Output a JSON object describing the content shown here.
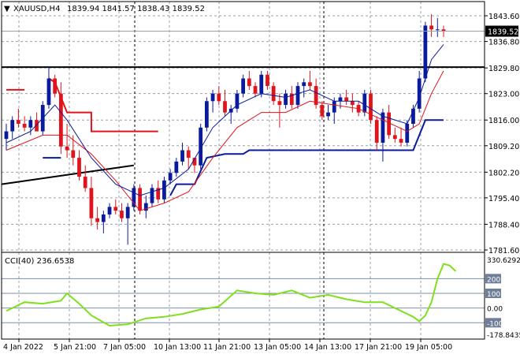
{
  "header": {
    "arrow": "▼",
    "symbol_tf": "XAUUSD,H4",
    "ohlc": "1839.94 1841.57 1838.43 1839.52"
  },
  "indicator": {
    "label": "CCI(40) 236.6538"
  },
  "colors": {
    "bull_candle": "#0a1a9c",
    "bear_candle": "#e0141c",
    "fast_ma": "#0a1a9c",
    "slow_ma": "#e0141c",
    "cci_line": "#7fe01e",
    "grid": "#9aa0a8",
    "frame": "#000000",
    "price_tag": "#000000"
  },
  "chart_data": {
    "type": "candlestick",
    "price_ticks": [
      "1843.60",
      "1836.80",
      "1829.80",
      "1823.00",
      "1816.00",
      "1809.20",
      "1802.20",
      "1795.40",
      "1788.40",
      "1781.60"
    ],
    "price_min": 1781.6,
    "price_max": 1843.6,
    "current_price": "1839.52",
    "x_labels": [
      "4 Jan 2022",
      "5 Jan 21:00",
      "7 Jan 05:00",
      "10 Jan 13:00",
      "11 Jan 21:00",
      "13 Jan 05:00",
      "14 Jan 13:00",
      "17 Jan 21:00",
      "19 Jan 05:00"
    ],
    "cci_ticks": [
      "330.6292",
      "200",
      "100",
      "0.00",
      "-100",
      "-178.8435"
    ],
    "cci_levels": [
      200,
      100,
      0,
      -100
    ],
    "cci_min": -178.8435,
    "cci_max": 330.6292,
    "candles": [
      [
        1811,
        1815,
        1808,
        1813
      ],
      [
        1813,
        1817,
        1811,
        1816
      ],
      [
        1816,
        1819,
        1814,
        1815
      ],
      [
        1815,
        1817,
        1813,
        1814
      ],
      [
        1814,
        1817,
        1812,
        1816
      ],
      [
        1816,
        1818,
        1813,
        1813
      ],
      [
        1813,
        1821,
        1812,
        1820
      ],
      [
        1820,
        1830,
        1819,
        1827
      ],
      [
        1827,
        1828,
        1822,
        1823
      ],
      [
        1823,
        1826,
        1807,
        1809
      ],
      [
        1809,
        1815,
        1806,
        1808
      ],
      [
        1808,
        1812,
        1804,
        1806
      ],
      [
        1806,
        1808,
        1800,
        1801
      ],
      [
        1801,
        1804,
        1797,
        1798
      ],
      [
        1798,
        1801,
        1788,
        1790
      ],
      [
        1790,
        1793,
        1787,
        1789
      ],
      [
        1789,
        1792,
        1786,
        1791
      ],
      [
        1791,
        1794,
        1790,
        1793
      ],
      [
        1793,
        1795,
        1791,
        1792
      ],
      [
        1792,
        1794,
        1789,
        1790
      ],
      [
        1790,
        1794,
        1783,
        1793
      ],
      [
        1793,
        1799,
        1792,
        1798
      ],
      [
        1798,
        1799,
        1791,
        1792
      ],
      [
        1792,
        1796,
        1790,
        1794
      ],
      [
        1794,
        1799,
        1793,
        1798
      ],
      [
        1798,
        1800,
        1794,
        1795
      ],
      [
        1795,
        1801,
        1794,
        1800
      ],
      [
        1800,
        1803,
        1799,
        1802
      ],
      [
        1802,
        1806,
        1801,
        1805
      ],
      [
        1805,
        1810,
        1804,
        1808
      ],
      [
        1808,
        1809,
        1803,
        1806
      ],
      [
        1806,
        1806,
        1802,
        1804
      ],
      [
        1804,
        1815,
        1803,
        1814
      ],
      [
        1814,
        1822,
        1813,
        1821
      ],
      [
        1821,
        1824,
        1818,
        1823
      ],
      [
        1823,
        1825,
        1820,
        1821
      ],
      [
        1821,
        1824,
        1817,
        1818
      ],
      [
        1818,
        1820,
        1815,
        1819
      ],
      [
        1819,
        1824,
        1818,
        1823
      ],
      [
        1823,
        1828,
        1822,
        1827
      ],
      [
        1827,
        1829,
        1824,
        1825
      ],
      [
        1825,
        1826,
        1822,
        1823
      ],
      [
        1823,
        1829,
        1822,
        1828
      ],
      [
        1828,
        1829,
        1824,
        1825
      ],
      [
        1825,
        1826,
        1820,
        1821
      ],
      [
        1821,
        1823,
        1814,
        1820
      ],
      [
        1820,
        1824,
        1819,
        1823
      ],
      [
        1823,
        1825,
        1819,
        1820
      ],
      [
        1820,
        1826,
        1819,
        1825
      ],
      [
        1825,
        1827,
        1822,
        1826
      ],
      [
        1826,
        1829,
        1824,
        1825
      ],
      [
        1825,
        1827,
        1819,
        1820
      ],
      [
        1820,
        1821,
        1816,
        1817
      ],
      [
        1817,
        1820,
        1816,
        1818
      ],
      [
        1818,
        1822,
        1815,
        1821
      ],
      [
        1821,
        1823,
        1819,
        1822
      ],
      [
        1822,
        1824,
        1820,
        1821
      ],
      [
        1821,
        1823,
        1818,
        1820
      ],
      [
        1820,
        1821,
        1817,
        1818
      ],
      [
        1818,
        1824,
        1817,
        1823
      ],
      [
        1823,
        1824,
        1815,
        1816
      ],
      [
        1816,
        1817,
        1808,
        1810
      ],
      [
        1810,
        1819,
        1805,
        1818
      ],
      [
        1818,
        1820,
        1811,
        1812
      ],
      [
        1812,
        1814,
        1810,
        1811
      ],
      [
        1811,
        1814,
        1809,
        1810
      ],
      [
        1810,
        1816,
        1809,
        1815
      ],
      [
        1815,
        1820,
        1814,
        1819
      ],
      [
        1819,
        1829,
        1818,
        1827
      ],
      [
        1827,
        1842,
        1826,
        1841
      ],
      [
        1841,
        1844,
        1838,
        1840
      ],
      [
        1840,
        1843,
        1838,
        1840
      ],
      [
        1840,
        1841,
        1838,
        1839.52
      ]
    ],
    "fast_ma": [
      [
        0,
        1810
      ],
      [
        4,
        1813
      ],
      [
        8,
        1820
      ],
      [
        10,
        1816
      ],
      [
        14,
        1806
      ],
      [
        18,
        1799
      ],
      [
        22,
        1796
      ],
      [
        26,
        1798
      ],
      [
        30,
        1803
      ],
      [
        34,
        1814
      ],
      [
        38,
        1820
      ],
      [
        42,
        1823
      ],
      [
        46,
        1822
      ],
      [
        50,
        1824
      ],
      [
        54,
        1821
      ],
      [
        58,
        1821
      ],
      [
        62,
        1817
      ],
      [
        66,
        1815
      ],
      [
        68,
        1822
      ],
      [
        70,
        1832
      ],
      [
        72,
        1836
      ]
    ],
    "slow_ma": [
      [
        0,
        1808
      ],
      [
        6,
        1812
      ],
      [
        10,
        1812
      ],
      [
        14,
        1807
      ],
      [
        18,
        1800
      ],
      [
        22,
        1792
      ],
      [
        26,
        1794
      ],
      [
        30,
        1797
      ],
      [
        34,
        1806
      ],
      [
        38,
        1814
      ],
      [
        42,
        1818
      ],
      [
        46,
        1818
      ],
      [
        50,
        1821
      ],
      [
        54,
        1820
      ],
      [
        58,
        1819
      ],
      [
        62,
        1816
      ],
      [
        66,
        1813
      ],
      [
        68,
        1815
      ],
      [
        70,
        1823
      ],
      [
        72,
        1829
      ]
    ],
    "upper_steps": [
      [
        0,
        1824
      ],
      [
        3,
        1824
      ],
      [
        3.01,
        null
      ],
      [
        7,
        1827
      ],
      [
        8,
        1826
      ],
      [
        10,
        1818
      ],
      [
        14,
        1818
      ],
      [
        14.01,
        1813
      ],
      [
        25,
        1813
      ]
    ],
    "lower_steps": [
      [
        27,
        1796
      ],
      [
        28,
        1799
      ],
      [
        31,
        1799
      ],
      [
        33,
        1806
      ],
      [
        36,
        1807
      ],
      [
        39,
        1807
      ],
      [
        40,
        1808
      ],
      [
        67,
        1808
      ],
      [
        69,
        1816
      ],
      [
        72,
        1816
      ]
    ],
    "black_level": 1830,
    "black_trend": [
      [
        0,
        1799
      ],
      [
        21,
        1804
      ]
    ],
    "blue_short": [
      [
        6,
        1806
      ],
      [
        9,
        1806
      ]
    ],
    "cci": [
      [
        0,
        -20
      ],
      [
        3,
        40
      ],
      [
        6,
        30
      ],
      [
        9,
        50
      ],
      [
        10,
        100
      ],
      [
        12,
        30
      ],
      [
        14,
        -50
      ],
      [
        17,
        -120
      ],
      [
        20,
        -110
      ],
      [
        23,
        -70
      ],
      [
        26,
        -60
      ],
      [
        29,
        -40
      ],
      [
        32,
        -10
      ],
      [
        35,
        10
      ],
      [
        38,
        120
      ],
      [
        41,
        100
      ],
      [
        44,
        90
      ],
      [
        47,
        120
      ],
      [
        50,
        70
      ],
      [
        53,
        90
      ],
      [
        56,
        60
      ],
      [
        59,
        40
      ],
      [
        62,
        40
      ],
      [
        65,
        -20
      ],
      [
        67,
        -60
      ],
      [
        68,
        -90
      ],
      [
        69,
        -50
      ],
      [
        70,
        40
      ],
      [
        71,
        200
      ],
      [
        72,
        300
      ],
      [
        73,
        290
      ],
      [
        74,
        250
      ]
    ]
  }
}
